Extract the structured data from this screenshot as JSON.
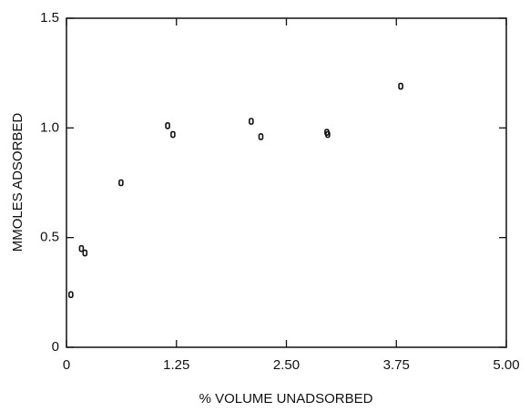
{
  "chart_data": {
    "type": "scatter",
    "x_label": "% VOLUME UNADSORBED",
    "y_label": "MMOLES ADSORBED",
    "series": [
      {
        "color": "#111111",
        "x": [
          0.05,
          0.17,
          0.21,
          0.62,
          1.15,
          1.21,
          2.1,
          2.21,
          2.96,
          2.97,
          3.8
        ],
        "values": [
          0.24,
          0.45,
          0.43,
          0.75,
          1.01,
          0.97,
          1.03,
          0.96,
          0.98,
          0.97,
          1.19
        ]
      }
    ],
    "xlim": [
      0,
      5
    ],
    "xticks": [
      0,
      1.25,
      {
        "value": 2.5,
        "label": "2.50"
      },
      3.75,
      {
        "value": 5,
        "label": "5.00"
      }
    ],
    "ylim": [
      0,
      1.5
    ],
    "yticks": [
      0,
      0.5,
      {
        "value": 1,
        "label": "1.0"
      },
      1.5
    ],
    "grid": false
  }
}
